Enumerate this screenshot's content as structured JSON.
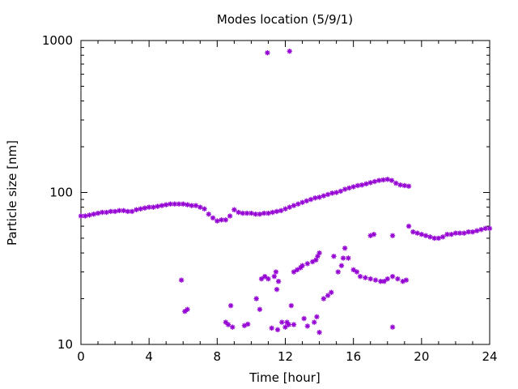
{
  "chart_data": {
    "type": "scatter",
    "title": "Modes location (5/9/1)",
    "xlabel": "Time [hour]",
    "ylabel": "Particle size [nm]",
    "xlim": [
      0,
      24
    ],
    "ylim": [
      10,
      1000
    ],
    "yscale": "log",
    "xticks": [
      "0",
      "4",
      "8",
      "12",
      "16",
      "20",
      "24"
    ],
    "yticks": [
      "10",
      "100",
      "1000"
    ],
    "grid": false,
    "legend": "none",
    "marker_color": "#9400d3",
    "series": [
      {
        "values": [
          [
            0.0,
            70
          ],
          [
            0.25,
            70
          ],
          [
            0.5,
            71
          ],
          [
            0.75,
            72
          ],
          [
            1.0,
            73
          ],
          [
            1.25,
            74
          ],
          [
            1.5,
            74
          ],
          [
            1.75,
            75
          ],
          [
            2.0,
            75
          ],
          [
            2.25,
            76
          ],
          [
            2.5,
            76
          ],
          [
            2.75,
            75
          ],
          [
            3.0,
            75
          ],
          [
            3.25,
            77
          ],
          [
            3.5,
            78
          ],
          [
            3.75,
            79
          ],
          [
            4.0,
            80
          ],
          [
            4.25,
            80
          ],
          [
            4.5,
            81
          ],
          [
            4.75,
            82
          ],
          [
            5.0,
            83
          ],
          [
            5.25,
            84
          ],
          [
            5.5,
            84
          ],
          [
            5.75,
            84
          ],
          [
            6.0,
            84
          ],
          [
            6.25,
            83
          ],
          [
            6.5,
            82
          ],
          [
            6.75,
            82
          ],
          [
            7.0,
            80
          ],
          [
            7.25,
            78
          ],
          [
            7.5,
            72
          ],
          [
            7.75,
            68
          ],
          [
            8.0,
            65
          ],
          [
            8.25,
            66
          ],
          [
            8.5,
            66
          ],
          [
            8.75,
            70
          ],
          [
            9.0,
            77
          ],
          [
            9.25,
            74
          ],
          [
            9.5,
            73
          ],
          [
            9.75,
            73
          ],
          [
            10.0,
            73
          ],
          [
            10.25,
            72
          ],
          [
            10.5,
            72
          ],
          [
            10.75,
            73
          ],
          [
            11.0,
            73
          ],
          [
            11.25,
            74
          ],
          [
            11.5,
            75
          ],
          [
            11.75,
            76
          ],
          [
            12.0,
            78
          ],
          [
            12.25,
            80
          ],
          [
            12.5,
            82
          ],
          [
            12.75,
            84
          ],
          [
            13.0,
            86
          ],
          [
            13.25,
            88
          ],
          [
            13.5,
            90
          ],
          [
            13.75,
            92
          ],
          [
            14.0,
            93
          ],
          [
            14.25,
            95
          ],
          [
            14.5,
            97
          ],
          [
            14.75,
            99
          ],
          [
            15.0,
            100
          ],
          [
            15.25,
            102
          ],
          [
            15.5,
            105
          ],
          [
            15.75,
            107
          ],
          [
            16.0,
            109
          ],
          [
            16.25,
            111
          ],
          [
            16.5,
            112
          ],
          [
            16.75,
            114
          ],
          [
            17.0,
            116
          ],
          [
            17.25,
            118
          ],
          [
            17.5,
            120
          ],
          [
            17.75,
            121
          ],
          [
            18.0,
            122
          ],
          [
            18.25,
            120
          ],
          [
            18.5,
            115
          ],
          [
            18.75,
            112
          ],
          [
            19.0,
            111
          ],
          [
            19.25,
            110
          ],
          [
            19.25,
            60
          ],
          [
            19.5,
            55
          ],
          [
            19.75,
            54
          ],
          [
            20.0,
            53
          ],
          [
            20.25,
            52
          ],
          [
            20.5,
            51
          ],
          [
            20.75,
            50
          ],
          [
            21.0,
            50
          ],
          [
            21.25,
            51
          ],
          [
            21.5,
            53
          ],
          [
            21.75,
            53
          ],
          [
            22.0,
            54
          ],
          [
            22.25,
            54
          ],
          [
            22.5,
            54
          ],
          [
            22.75,
            55
          ],
          [
            23.0,
            55
          ],
          [
            23.25,
            56
          ],
          [
            23.5,
            57
          ],
          [
            23.75,
            58
          ],
          [
            24.0,
            58
          ],
          [
            5.9,
            26.5
          ],
          [
            6.1,
            16.5
          ],
          [
            6.25,
            17
          ],
          [
            8.5,
            14
          ],
          [
            8.65,
            13.5
          ],
          [
            8.8,
            18
          ],
          [
            8.9,
            13
          ],
          [
            9.6,
            13.3
          ],
          [
            9.8,
            13.6
          ],
          [
            10.3,
            20
          ],
          [
            10.5,
            17
          ],
          [
            10.6,
            27
          ],
          [
            10.8,
            28
          ],
          [
            11.0,
            27
          ],
          [
            11.2,
            12.8
          ],
          [
            11.35,
            28
          ],
          [
            11.45,
            30
          ],
          [
            11.5,
            23
          ],
          [
            11.6,
            26
          ],
          [
            11.55,
            12.5
          ],
          [
            12.0,
            13
          ],
          [
            12.2,
            13.5
          ],
          [
            12.5,
            13.5
          ],
          [
            12.35,
            18
          ],
          [
            11.8,
            14
          ],
          [
            12.1,
            14
          ],
          [
            12.5,
            30
          ],
          [
            12.7,
            31
          ],
          [
            12.9,
            32
          ],
          [
            13.0,
            33
          ],
          [
            13.3,
            34
          ],
          [
            13.6,
            35
          ],
          [
            13.8,
            36
          ],
          [
            13.9,
            38
          ],
          [
            14.0,
            40
          ],
          [
            13.1,
            14.8
          ],
          [
            13.3,
            13.2
          ],
          [
            13.7,
            14
          ],
          [
            13.85,
            15.2
          ],
          [
            14.0,
            12
          ],
          [
            14.25,
            20
          ],
          [
            14.5,
            21
          ],
          [
            14.7,
            22
          ],
          [
            14.85,
            38
          ],
          [
            15.1,
            30
          ],
          [
            15.4,
            37
          ],
          [
            15.5,
            43
          ],
          [
            15.7,
            37
          ],
          [
            15.3,
            33
          ],
          [
            16.0,
            31
          ],
          [
            16.2,
            30
          ],
          [
            16.4,
            28
          ],
          [
            16.7,
            27.5
          ],
          [
            17.0,
            27
          ],
          [
            17.3,
            26.5
          ],
          [
            17.6,
            26
          ],
          [
            17.8,
            26
          ],
          [
            18.0,
            27
          ],
          [
            18.3,
            28
          ],
          [
            18.6,
            27
          ],
          [
            18.9,
            26
          ],
          [
            19.1,
            26.5
          ],
          [
            17.0,
            52
          ],
          [
            17.2,
            53
          ],
          [
            18.3,
            52
          ],
          [
            18.3,
            13
          ],
          [
            10.95,
            830
          ],
          [
            12.25,
            850
          ]
        ]
      }
    ]
  }
}
